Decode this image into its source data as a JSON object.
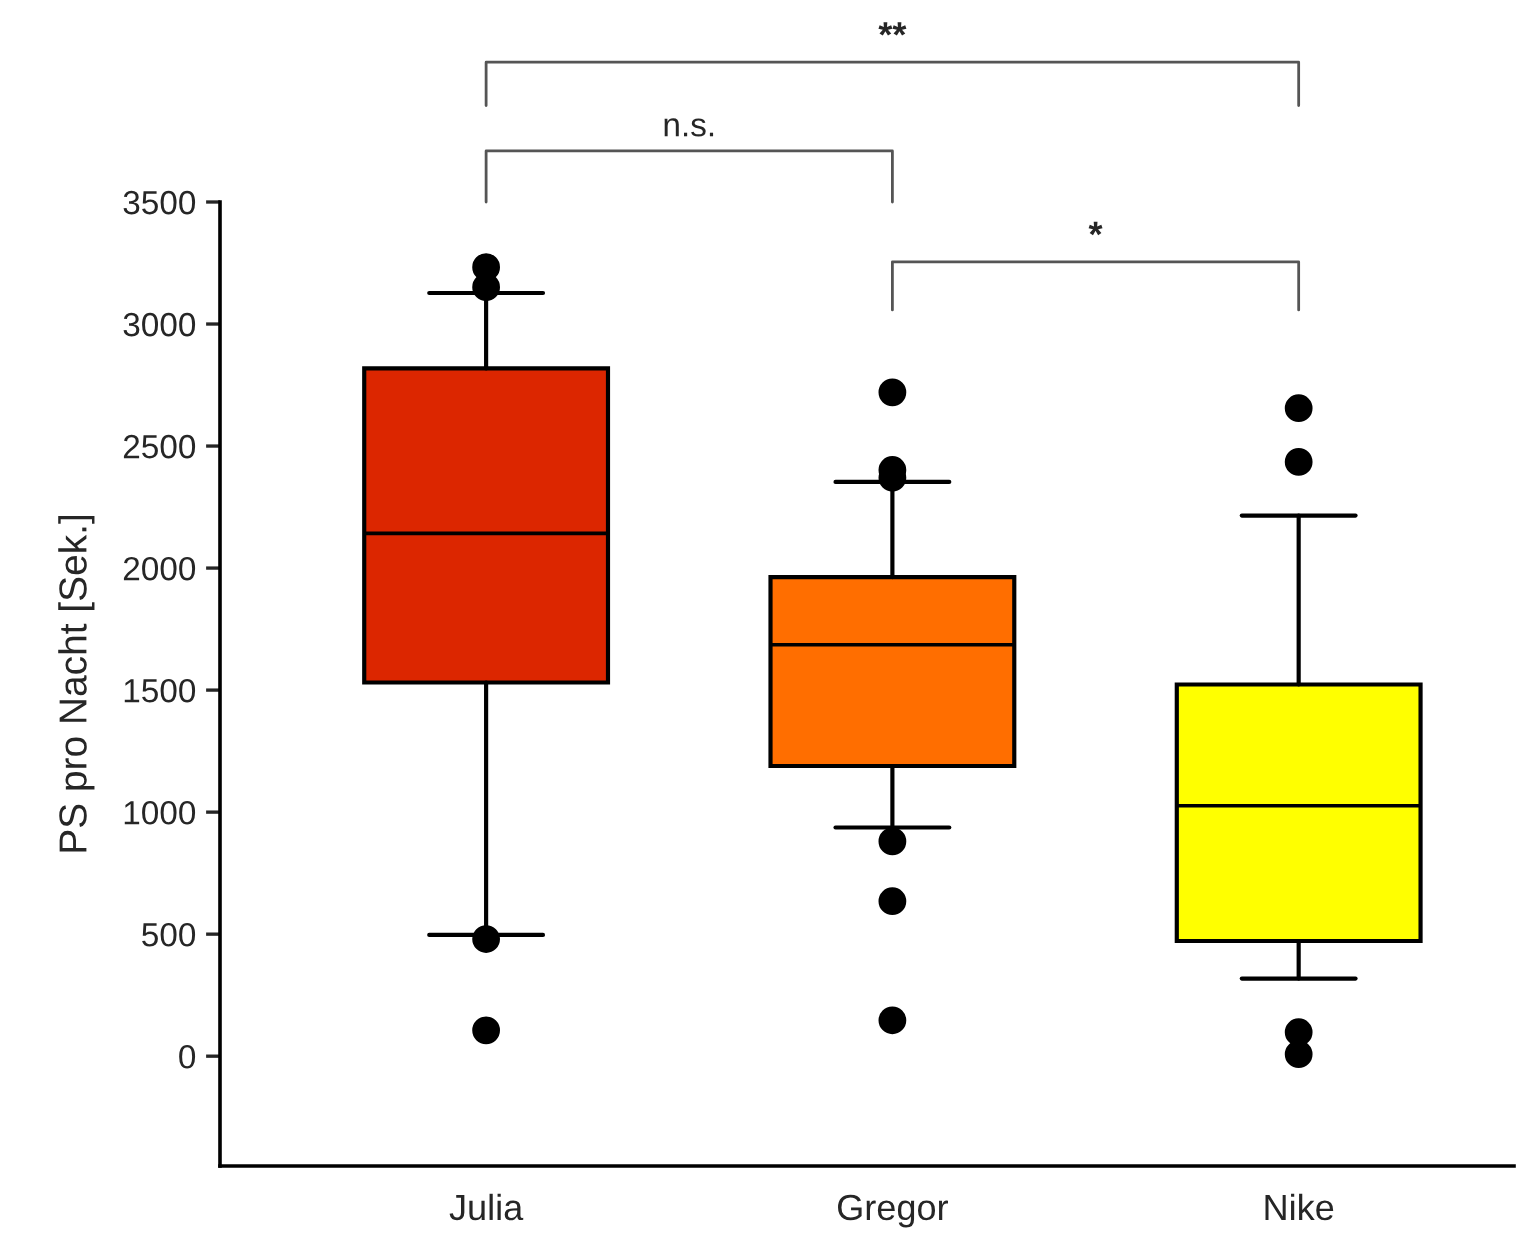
{
  "chart_data": {
    "type": "box",
    "ylabel": "PS pro Nacht [Sek.]",
    "categories": [
      "Julia",
      "Gregor",
      "Nike"
    ],
    "colors": [
      "#dc2600",
      "#ff6e00",
      "#ffff00"
    ],
    "boxes": [
      {
        "low": 497,
        "q1": 1531,
        "median": 2142,
        "q3": 2818,
        "high": 3127,
        "outliers": [
          3233,
          3151,
          480,
          106
        ]
      },
      {
        "low": 937,
        "q1": 1189,
        "median": 1686,
        "q3": 1963,
        "high": 2353,
        "outliers": [
          2720,
          2402,
          2370,
          880,
          635,
          147
        ]
      },
      {
        "low": 318,
        "q1": 472,
        "median": 1026,
        "q3": 1523,
        "high": 2215,
        "outliers": [
          2655,
          2435,
          98,
          8
        ]
      }
    ],
    "ylim": [
      -450,
      3500
    ],
    "yticks": [
      0,
      500,
      1000,
      1500,
      2000,
      2500,
      3000,
      3500
    ],
    "annotations": [
      "**",
      "n.s.",
      "*"
    ],
    "grid": false
  }
}
